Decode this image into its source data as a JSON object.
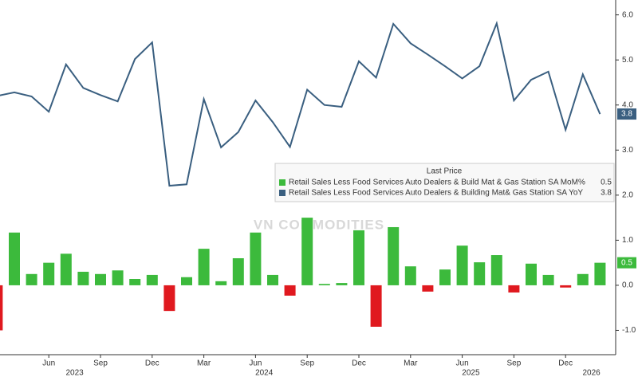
{
  "chart_data": {
    "type": "bar-line",
    "x": [
      "2023-03",
      "2023-04",
      "2023-05",
      "2023-06",
      "2023-07",
      "2023-08",
      "2023-09",
      "2023-10",
      "2023-11",
      "2023-12",
      "2024-01",
      "2024-02",
      "2024-03",
      "2024-04",
      "2024-05",
      "2024-06",
      "2024-07",
      "2024-08",
      "2024-09",
      "2024-10",
      "2024-11",
      "2024-12",
      "2025-01",
      "2025-02",
      "2025-03",
      "2025-04",
      "2025-05",
      "2025-06",
      "2025-07",
      "2025-08",
      "2025-09",
      "2025-10",
      "2025-11",
      "2025-12",
      "2026-01",
      "2026-02"
    ],
    "xticks": [
      {
        "value": "2023-06",
        "label": "Jun"
      },
      {
        "value": "2023-09",
        "label": "Sep"
      },
      {
        "value": "2023-12",
        "label": "Dec"
      },
      {
        "value": "2024-03",
        "label": "Mar"
      },
      {
        "value": "2024-06",
        "label": "Jun"
      },
      {
        "value": "2024-09",
        "label": "Sep"
      },
      {
        "value": "2024-12",
        "label": "Dec"
      },
      {
        "value": "2025-03",
        "label": "Mar"
      },
      {
        "value": "2025-06",
        "label": "Jun"
      },
      {
        "value": "2025-09",
        "label": "Sep"
      },
      {
        "value": "2025-12",
        "label": "Dec"
      }
    ],
    "years": [
      "2023",
      "2024",
      "2025",
      "2026"
    ],
    "series": [
      {
        "name": "Retail Sales Less Food Services Auto Dealers & Build Mat & Gas Station SA MoM%",
        "type": "bar",
        "color": "#3cba3c",
        "negative_color": "#e0191f",
        "values": [
          -1.0,
          1.17,
          0.25,
          0.5,
          0.7,
          0.3,
          0.25,
          0.33,
          0.14,
          0.23,
          -0.57,
          0.18,
          0.81,
          0.09,
          0.6,
          1.17,
          0.23,
          -0.23,
          1.5,
          0.03,
          0.05,
          1.22,
          -0.92,
          1.29,
          0.42,
          -0.14,
          0.35,
          0.88,
          0.51,
          0.67,
          -0.16,
          0.48,
          0.23,
          -0.05,
          0.25,
          0.5
        ]
      },
      {
        "name": "Retail Sales Less Food Services Auto Dealers & Building Mat& Gas Station SA YoY",
        "type": "line",
        "color": "#3a5f80",
        "values": [
          4.2,
          4.28,
          4.19,
          3.85,
          4.9,
          4.38,
          4.22,
          4.08,
          5.02,
          5.39,
          2.21,
          2.24,
          4.13,
          3.06,
          3.4,
          4.1,
          3.62,
          3.07,
          4.34,
          4.0,
          3.96,
          4.97,
          4.61,
          5.8,
          5.37,
          5.12,
          4.86,
          4.59,
          4.86,
          5.81,
          4.1,
          4.56,
          4.74,
          3.45,
          4.68,
          3.8
        ]
      }
    ],
    "legend_title": "Last Price",
    "watermark": "VN COMMODITIES",
    "ylim": [
      -1.54,
      6.33
    ],
    "yticks": [
      {
        "value": -1,
        "label": "-1.0"
      },
      {
        "value": 0,
        "label": "0.0"
      },
      {
        "value": 1,
        "label": "1.0"
      },
      {
        "value": 2,
        "label": "2.0"
      },
      {
        "value": 3,
        "label": "3.0"
      },
      {
        "value": 4,
        "label": "4.0"
      },
      {
        "value": 5,
        "label": "5.0"
      },
      {
        "value": 6,
        "label": "6.0"
      }
    ]
  }
}
